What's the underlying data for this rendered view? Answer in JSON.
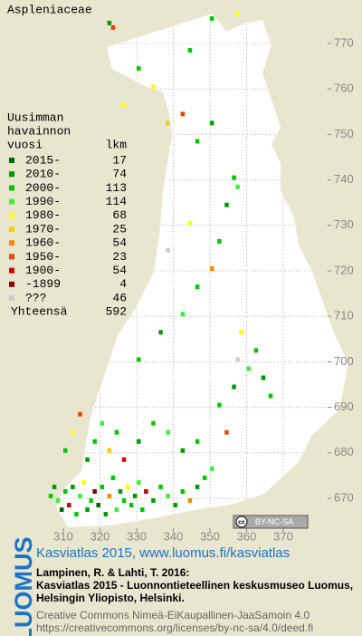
{
  "title": "Aspleniaceae",
  "map": {
    "xticks": [
      310,
      320,
      330,
      340,
      350,
      360,
      370
    ],
    "yticks": [
      670,
      680,
      690,
      700,
      710,
      720,
      730,
      740,
      750,
      760,
      770
    ],
    "occurrences": [
      [
        306,
        670,
        2
      ],
      [
        307,
        672,
        1
      ],
      [
        308,
        669,
        3
      ],
      [
        309,
        667,
        0
      ],
      [
        310,
        671,
        2
      ],
      [
        311,
        668,
        8
      ],
      [
        312,
        672,
        1
      ],
      [
        313,
        666,
        2
      ],
      [
        314,
        670,
        3
      ],
      [
        315,
        673,
        4
      ],
      [
        316,
        667,
        1
      ],
      [
        317,
        669,
        2
      ],
      [
        318,
        671,
        9
      ],
      [
        319,
        668,
        0
      ],
      [
        320,
        672,
        2
      ],
      [
        321,
        666,
        1
      ],
      [
        322,
        670,
        6
      ],
      [
        323,
        674,
        2
      ],
      [
        324,
        667,
        3
      ],
      [
        325,
        671,
        1
      ],
      [
        326,
        669,
        2
      ],
      [
        327,
        672,
        4
      ],
      [
        328,
        668,
        2
      ],
      [
        329,
        670,
        1
      ],
      [
        330,
        673,
        3
      ],
      [
        331,
        667,
        2
      ],
      [
        332,
        671,
        8
      ],
      [
        334,
        669,
        1
      ],
      [
        336,
        672,
        2
      ],
      [
        338,
        670,
        3
      ],
      [
        340,
        668,
        1
      ],
      [
        342,
        671,
        2
      ],
      [
        344,
        669,
        6
      ],
      [
        346,
        672,
        1
      ],
      [
        348,
        674,
        2
      ],
      [
        350,
        676,
        3
      ],
      [
        310,
        680,
        2
      ],
      [
        312,
        684,
        4
      ],
      [
        314,
        688,
        7
      ],
      [
        316,
        678,
        1
      ],
      [
        318,
        682,
        2
      ],
      [
        320,
        686,
        3
      ],
      [
        322,
        680,
        5
      ],
      [
        324,
        684,
        2
      ],
      [
        326,
        678,
        8
      ],
      [
        330,
        682,
        1
      ],
      [
        334,
        686,
        2
      ],
      [
        338,
        684,
        3
      ],
      [
        342,
        680,
        1
      ],
      [
        346,
        682,
        2
      ],
      [
        352,
        690,
        2
      ],
      [
        356,
        694,
        1
      ],
      [
        360,
        698,
        3
      ],
      [
        362,
        702,
        2
      ],
      [
        358,
        706,
        4
      ],
      [
        364,
        696,
        1
      ],
      [
        366,
        692,
        2
      ],
      [
        354,
        684,
        7
      ],
      [
        357,
        700,
        10
      ],
      [
        330,
        700,
        2
      ],
      [
        336,
        706,
        1
      ],
      [
        342,
        710,
        3
      ],
      [
        346,
        716,
        2
      ],
      [
        350,
        720,
        6
      ],
      [
        352,
        726,
        2
      ],
      [
        354,
        734,
        1
      ],
      [
        356,
        740,
        2
      ],
      [
        357,
        738,
        3
      ],
      [
        344,
        730,
        4
      ],
      [
        338,
        724,
        10
      ],
      [
        334,
        760,
        4
      ],
      [
        338,
        752,
        5
      ],
      [
        342,
        754,
        7
      ],
      [
        346,
        748,
        2
      ],
      [
        350,
        752,
        1
      ],
      [
        326,
        756,
        4
      ],
      [
        330,
        764,
        2
      ],
      [
        322,
        774,
        1
      ],
      [
        323,
        773,
        7
      ],
      [
        344,
        768,
        2
      ],
      [
        357,
        776,
        4
      ],
      [
        350,
        775,
        2
      ]
    ]
  },
  "legend": {
    "heading": [
      "Uusimman",
      "havainnon",
      "vuosi"
    ],
    "count_heading": "lkm",
    "entries": [
      {
        "label": "2015-",
        "color": "#006400",
        "count": 17
      },
      {
        "label": "2010-",
        "color": "#009a00",
        "count": 74
      },
      {
        "label": "2000-",
        "color": "#00c800",
        "count": 113
      },
      {
        "label": "1990-",
        "color": "#3cf03c",
        "count": 114
      },
      {
        "label": "1980-",
        "color": "#ffff00",
        "count": 68
      },
      {
        "label": "1970-",
        "color": "#ffcc00",
        "count": 25
      },
      {
        "label": "1960-",
        "color": "#ff8800",
        "count": 54
      },
      {
        "label": "1950-",
        "color": "#ee4400",
        "count": 23
      },
      {
        "label": "1900-",
        "color": "#cc0000",
        "count": 54
      },
      {
        "label": "-1899",
        "color": "#880000",
        "count": 4
      },
      {
        "label": "???",
        "color": "#cccccc",
        "count": 46
      }
    ],
    "total_label": "Yhteensä",
    "total": 592
  },
  "badge": "BY-NC-SA",
  "footer": {
    "logo": "LUOMUS",
    "link": "Kasviatlas 2015, www.luomus.fi/kasviatlas",
    "citation": [
      "Lampinen, R. & Lahti, T. 2016:",
      "Kasviatlas 2015 - Luonnontieteellinen keskusmuseo Luomus,",
      "Helsingin Yliopisto, Helsinki."
    ],
    "license": [
      "Creative Commons Nimeä-EiKaupallinen-JaaSamoin 4.0",
      "https://creativecommons.org/licenses/by-nc-sa/4.0/deed.fi"
    ]
  }
}
